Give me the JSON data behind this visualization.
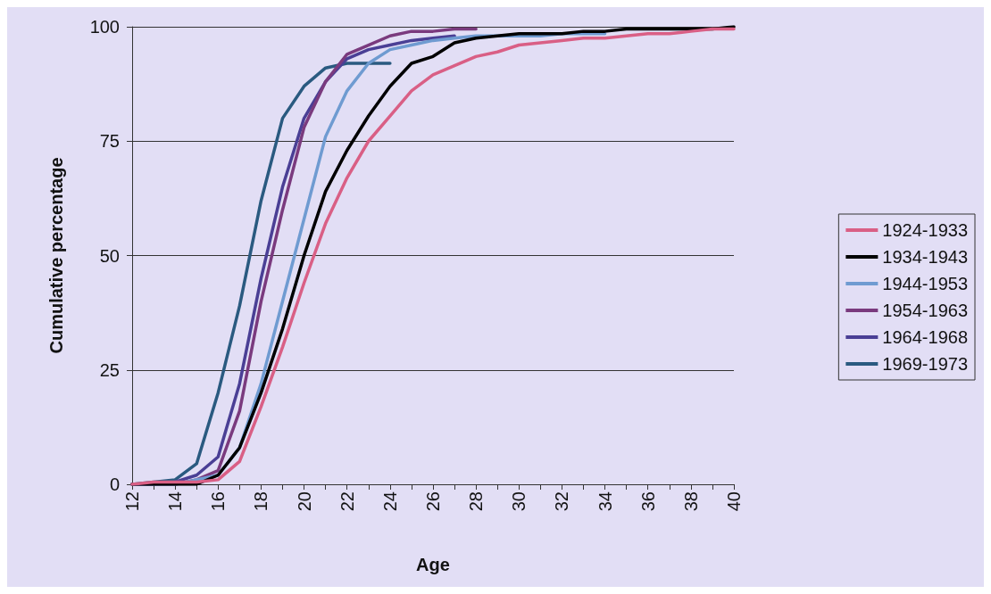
{
  "chart_data": {
    "type": "line",
    "xlabel": "Age",
    "ylabel": "Cumulative percentage",
    "xlim": [
      12,
      40
    ],
    "xticks": [
      12,
      {
        "value": 13,
        "label": null
      },
      14,
      {
        "value": 15,
        "label": null
      },
      16,
      {
        "value": 17,
        "label": null
      },
      18,
      {
        "value": 19,
        "label": null
      },
      20,
      {
        "value": 21,
        "label": null
      },
      22,
      {
        "value": 23,
        "label": null
      },
      24,
      {
        "value": 25,
        "label": null
      },
      26,
      {
        "value": 27,
        "label": null
      },
      28,
      {
        "value": 29,
        "label": null
      },
      30,
      {
        "value": 31,
        "label": null
      },
      32,
      {
        "value": 33,
        "label": null
      },
      34,
      {
        "value": 35,
        "label": null
      },
      36,
      {
        "value": 37,
        "label": null
      },
      38,
      {
        "value": 39,
        "label": null
      },
      40
    ],
    "ylim": [
      0,
      100
    ],
    "yticks": [
      0,
      25,
      50,
      75,
      100
    ],
    "grid": "y",
    "legend": "right",
    "marker": "none",
    "line_style": "solid",
    "x": [
      12,
      13,
      14,
      15,
      16,
      17,
      18,
      19,
      20,
      21,
      22,
      23,
      24,
      25,
      26,
      27,
      28,
      29,
      30,
      31,
      32,
      33,
      34,
      35,
      36,
      37,
      38,
      39,
      40
    ],
    "series": [
      {
        "name": "1924-1933",
        "color": "#d95f85",
        "values": [
          0,
          0.5,
          0.5,
          0.5,
          1,
          5,
          17,
          30,
          44,
          57,
          67,
          75,
          80.5,
          86,
          89.5,
          91.5,
          93.5,
          94.5,
          96,
          96.5,
          97,
          97.5,
          97.5,
          98,
          98.5,
          98.5,
          99,
          99.5,
          99.5
        ]
      },
      {
        "name": "1934-1943",
        "color": "#000000",
        "values": [
          0,
          0,
          0,
          0,
          2,
          8,
          20,
          34,
          50,
          64,
          73,
          80.5,
          87,
          92,
          93.5,
          96.5,
          97.5,
          98,
          98.5,
          98.5,
          98.5,
          99,
          99,
          99.5,
          99.5,
          99.5,
          99.5,
          99.5,
          100
        ]
      },
      {
        "name": "1944-1953",
        "color": "#6f9bd1",
        "values": [
          0,
          0,
          0,
          1,
          2,
          8,
          22,
          40,
          58,
          76,
          86,
          92,
          95,
          96,
          97,
          97.5,
          98,
          98,
          98,
          98,
          98.5,
          98.5,
          98.5,
          null,
          null,
          null,
          null,
          null,
          null
        ]
      },
      {
        "name": "1954-1963",
        "color": "#7a3a7e",
        "values": [
          0,
          0,
          0,
          1,
          3,
          16,
          40,
          60,
          78,
          88,
          94,
          96,
          98,
          99,
          99,
          99.5,
          99.5,
          null,
          null,
          null,
          null,
          null,
          null,
          null,
          null,
          null,
          null,
          null,
          null
        ]
      },
      {
        "name": "1964-1968",
        "color": "#4a3f95",
        "values": [
          0,
          0,
          0.5,
          2,
          6,
          22,
          45,
          65,
          80,
          88,
          93,
          95,
          96,
          97,
          97.5,
          98,
          null,
          null,
          null,
          null,
          null,
          null,
          null,
          null,
          null,
          null,
          null,
          null,
          null
        ]
      },
      {
        "name": "1969-1973",
        "color": "#2a5a80",
        "values": [
          0,
          0.5,
          1,
          4.5,
          20,
          39,
          62,
          80,
          87,
          91,
          92,
          92,
          92,
          null,
          null,
          null,
          null,
          null,
          null,
          null,
          null,
          null,
          null,
          null,
          null,
          null,
          null,
          null,
          null
        ]
      }
    ]
  }
}
